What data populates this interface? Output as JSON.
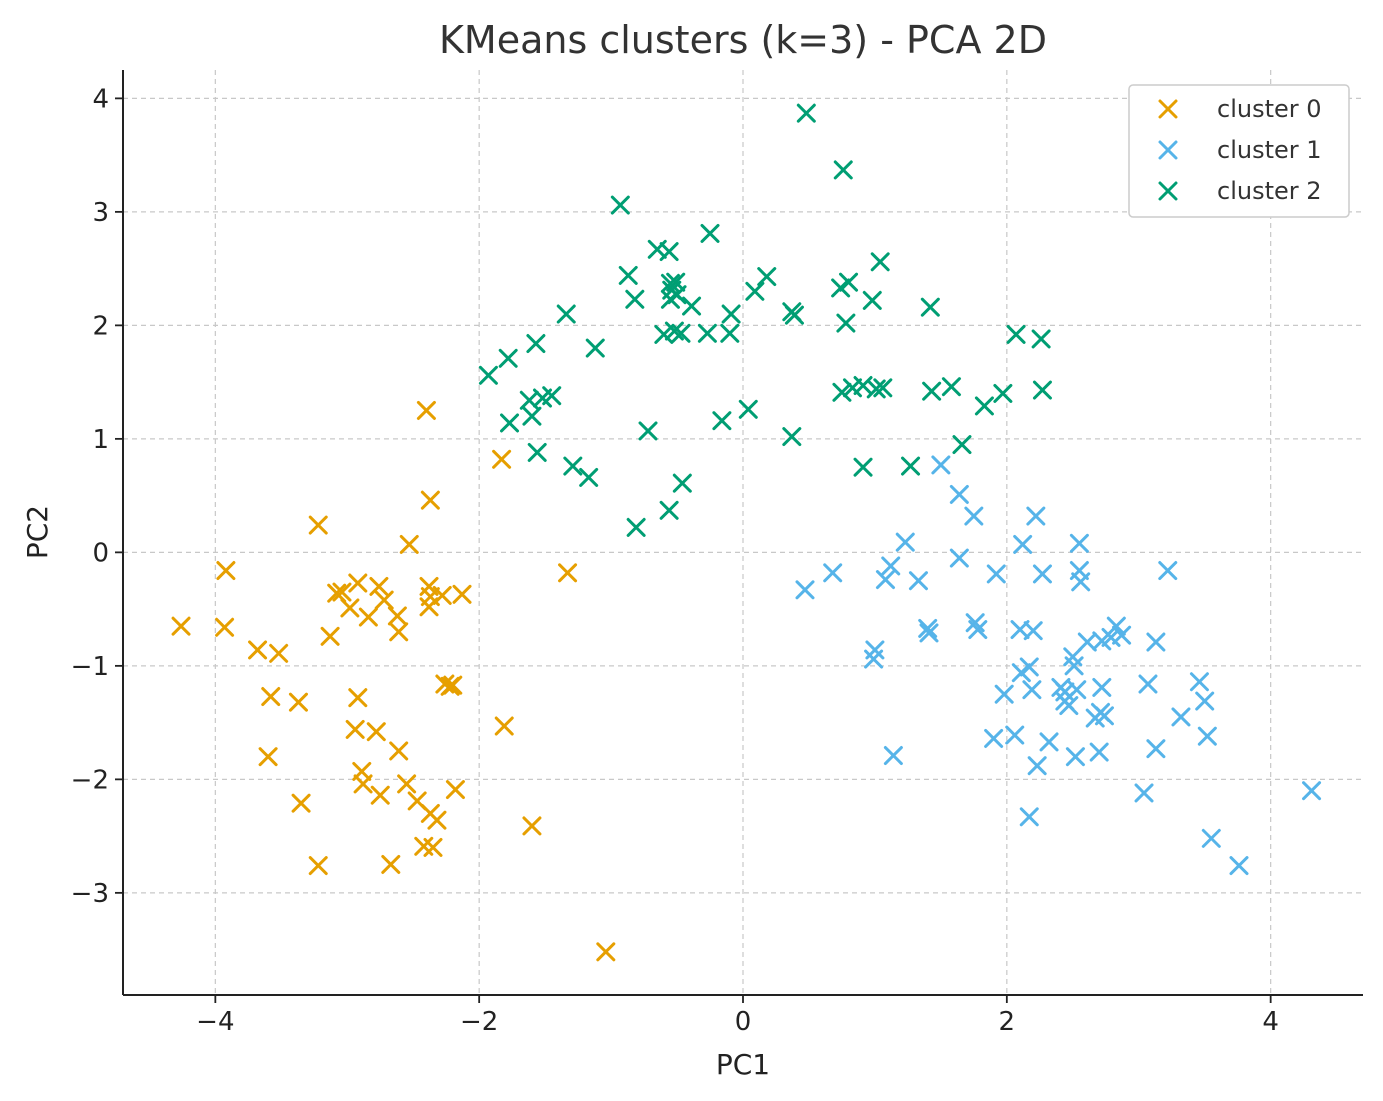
{
  "chart_data": {
    "type": "scatter",
    "title": "KMeans clusters (k=3) - PCA 2D",
    "xlabel": "PC1",
    "ylabel": "PC2",
    "xlim": [
      -4.7,
      4.7
    ],
    "ylim": [
      -3.9,
      4.25
    ],
    "x_ticks": [
      -4,
      -2,
      0,
      2,
      4
    ],
    "y_ticks": [
      -3,
      -2,
      -1,
      0,
      1,
      2,
      3,
      4
    ],
    "x_tick_labels": [
      "−4",
      "−2",
      "0",
      "2",
      "4"
    ],
    "y_tick_labels": [
      "−3",
      "−2",
      "−1",
      "0",
      "1",
      "2",
      "3",
      "4"
    ],
    "grid": true,
    "legend_position": "top-right",
    "marker": "x",
    "series": [
      {
        "name": "cluster 0",
        "color": "#E69F00",
        "points": [
          [
            -4.26,
            -0.65
          ],
          [
            -3.93,
            -0.66
          ],
          [
            -3.92,
            -0.16
          ],
          [
            -3.68,
            -0.86
          ],
          [
            -3.6,
            -1.8
          ],
          [
            -3.58,
            -1.27
          ],
          [
            -3.52,
            -0.89
          ],
          [
            -3.37,
            -1.32
          ],
          [
            -3.35,
            -2.21
          ],
          [
            -3.22,
            -2.76
          ],
          [
            -3.22,
            0.24
          ],
          [
            -3.13,
            -0.74
          ],
          [
            -3.08,
            -0.36
          ],
          [
            -3.04,
            -0.35
          ],
          [
            -2.98,
            -0.49
          ],
          [
            -2.94,
            -1.56
          ],
          [
            -2.92,
            -0.27
          ],
          [
            -2.92,
            -1.28
          ],
          [
            -2.89,
            -1.93
          ],
          [
            -2.88,
            -2.04
          ],
          [
            -2.84,
            -0.57
          ],
          [
            -2.78,
            -1.58
          ],
          [
            -2.75,
            -2.14
          ],
          [
            -2.76,
            -0.3
          ],
          [
            -2.72,
            -0.42
          ],
          [
            -2.67,
            -2.75
          ],
          [
            -2.62,
            -0.56
          ],
          [
            -2.61,
            -0.7
          ],
          [
            -2.61,
            -1.75
          ],
          [
            -2.55,
            -2.04
          ],
          [
            -2.53,
            0.07
          ],
          [
            -2.47,
            -2.19
          ],
          [
            -2.42,
            -2.59
          ],
          [
            -2.4,
            1.25
          ],
          [
            -2.38,
            -0.3
          ],
          [
            -2.38,
            -0.48
          ],
          [
            -2.37,
            -0.39
          ],
          [
            -2.37,
            -2.3
          ],
          [
            -2.37,
            0.46
          ],
          [
            -2.35,
            -2.6
          ],
          [
            -2.32,
            -2.36
          ],
          [
            -2.28,
            -0.38
          ],
          [
            -2.26,
            -1.16
          ],
          [
            -2.22,
            -1.18
          ],
          [
            -2.2,
            -1.17
          ],
          [
            -2.18,
            -2.09
          ],
          [
            -2.13,
            -0.37
          ],
          [
            -1.83,
            0.82
          ],
          [
            -1.81,
            -1.53
          ],
          [
            -1.6,
            -2.41
          ],
          [
            -1.33,
            -0.18
          ],
          [
            -1.04,
            -3.52
          ]
        ]
      },
      {
        "name": "cluster 1",
        "color": "#56B4E9",
        "points": [
          [
            0.47,
            -0.33
          ],
          [
            0.68,
            -0.18
          ],
          [
            0.99,
            -0.94
          ],
          [
            1.0,
            -0.86
          ],
          [
            1.08,
            -0.24
          ],
          [
            1.12,
            -0.12
          ],
          [
            1.14,
            -1.79
          ],
          [
            1.23,
            0.09
          ],
          [
            1.33,
            -0.25
          ],
          [
            1.4,
            -0.67
          ],
          [
            1.41,
            -0.71
          ],
          [
            1.5,
            0.77
          ],
          [
            1.64,
            0.51
          ],
          [
            1.64,
            -0.05
          ],
          [
            1.75,
            0.32
          ],
          [
            1.76,
            -0.62
          ],
          [
            1.78,
            -0.68
          ],
          [
            1.9,
            -1.64
          ],
          [
            1.92,
            -0.19
          ],
          [
            1.98,
            -1.25
          ],
          [
            2.06,
            -1.61
          ],
          [
            2.1,
            -0.68
          ],
          [
            2.11,
            -1.06
          ],
          [
            2.12,
            0.07
          ],
          [
            2.17,
            -1.01
          ],
          [
            2.17,
            -2.33
          ],
          [
            2.19,
            -1.21
          ],
          [
            2.2,
            -0.69
          ],
          [
            2.22,
            0.32
          ],
          [
            2.23,
            -1.88
          ],
          [
            2.27,
            -0.19
          ],
          [
            2.32,
            -1.67
          ],
          [
            2.41,
            -1.19
          ],
          [
            2.44,
            -1.31
          ],
          [
            2.44,
            -1.23
          ],
          [
            2.47,
            -1.35
          ],
          [
            2.5,
            -0.92
          ],
          [
            2.51,
            -1.0
          ],
          [
            2.52,
            -1.8
          ],
          [
            2.53,
            -1.21
          ],
          [
            2.55,
            0.08
          ],
          [
            2.55,
            -0.16
          ],
          [
            2.56,
            -0.26
          ],
          [
            2.61,
            -0.79
          ],
          [
            2.67,
            -1.46
          ],
          [
            2.7,
            -1.76
          ],
          [
            2.71,
            -1.41
          ],
          [
            2.72,
            -1.19
          ],
          [
            2.72,
            -0.78
          ],
          [
            2.74,
            -1.44
          ],
          [
            2.79,
            -0.75
          ],
          [
            2.83,
            -0.65
          ],
          [
            2.87,
            -0.73
          ],
          [
            3.04,
            -2.12
          ],
          [
            3.07,
            -1.16
          ],
          [
            3.13,
            -0.79
          ],
          [
            3.13,
            -1.73
          ],
          [
            3.22,
            -0.16
          ],
          [
            3.32,
            -1.45
          ],
          [
            3.46,
            -1.14
          ],
          [
            3.5,
            -1.31
          ],
          [
            3.52,
            -1.62
          ],
          [
            3.55,
            -2.52
          ],
          [
            3.76,
            -2.76
          ],
          [
            4.31,
            -2.1
          ]
        ]
      },
      {
        "name": "cluster 2",
        "color": "#009E73",
        "points": [
          [
            -1.93,
            1.56
          ],
          [
            -1.78,
            1.71
          ],
          [
            -1.77,
            1.14
          ],
          [
            -1.62,
            1.34
          ],
          [
            -1.6,
            1.2
          ],
          [
            -1.57,
            1.84
          ],
          [
            -1.56,
            0.88
          ],
          [
            -1.52,
            1.36
          ],
          [
            -1.45,
            1.38
          ],
          [
            -1.34,
            2.1
          ],
          [
            -1.29,
            0.76
          ],
          [
            -1.17,
            0.66
          ],
          [
            -1.12,
            1.8
          ],
          [
            -0.93,
            3.06
          ],
          [
            -0.87,
            2.44
          ],
          [
            -0.82,
            2.23
          ],
          [
            -0.81,
            0.22
          ],
          [
            -0.72,
            1.07
          ],
          [
            -0.65,
            2.67
          ],
          [
            -0.6,
            1.92
          ],
          [
            -0.56,
            2.65
          ],
          [
            -0.56,
            0.37
          ],
          [
            -0.55,
            2.37
          ],
          [
            -0.55,
            2.23
          ],
          [
            -0.54,
            2.31
          ],
          [
            -0.52,
            1.95
          ],
          [
            -0.51,
            2.38
          ],
          [
            -0.5,
            2.27
          ],
          [
            -0.47,
            1.93
          ],
          [
            -0.46,
            0.61
          ],
          [
            -0.39,
            2.17
          ],
          [
            -0.27,
            1.93
          ],
          [
            -0.25,
            2.81
          ],
          [
            -0.16,
            1.16
          ],
          [
            -0.1,
            1.93
          ],
          [
            -0.09,
            2.1
          ],
          [
            0.04,
            1.26
          ],
          [
            0.09,
            2.3
          ],
          [
            0.18,
            2.43
          ],
          [
            0.37,
            2.12
          ],
          [
            0.37,
            1.02
          ],
          [
            0.39,
            2.09
          ],
          [
            0.48,
            3.87
          ],
          [
            0.74,
            2.33
          ],
          [
            0.75,
            1.41
          ],
          [
            0.76,
            3.37
          ],
          [
            0.78,
            2.02
          ],
          [
            0.8,
            2.38
          ],
          [
            0.83,
            1.45
          ],
          [
            0.91,
            1.47
          ],
          [
            0.91,
            0.75
          ],
          [
            0.98,
            2.22
          ],
          [
            1.01,
            1.44
          ],
          [
            1.04,
            2.56
          ],
          [
            1.06,
            1.45
          ],
          [
            1.27,
            0.76
          ],
          [
            1.43,
            1.42
          ],
          [
            1.42,
            2.16
          ],
          [
            1.58,
            1.46
          ],
          [
            1.66,
            0.95
          ],
          [
            1.83,
            1.29
          ],
          [
            1.97,
            1.4
          ],
          [
            2.07,
            1.92
          ],
          [
            2.26,
            1.88
          ],
          [
            2.27,
            1.43
          ]
        ]
      }
    ]
  }
}
